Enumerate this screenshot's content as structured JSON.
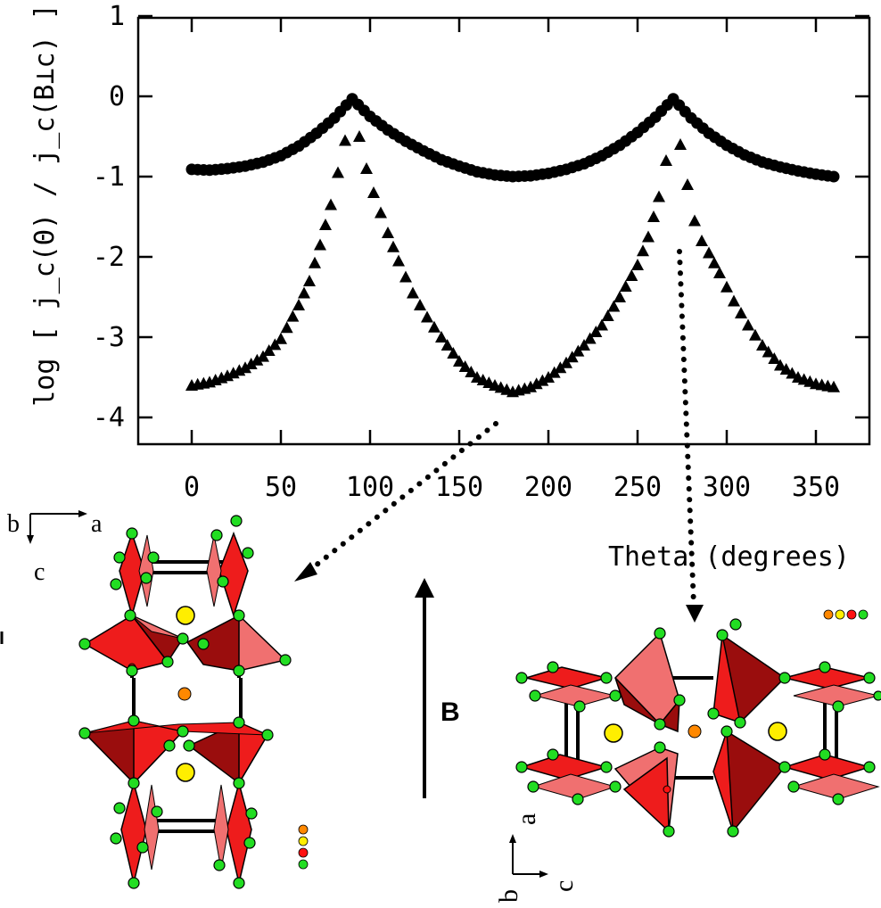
{
  "chart_data": {
    "type": "scatter",
    "ylabel": "log [ j_c(Θ) / j_c(B⊥c) ]",
    "xlabel": "Theta (degrees)",
    "xlim": [
      -30,
      375
    ],
    "ylim": [
      -4.4,
      1.0
    ],
    "x_ticks": [
      0,
      50,
      100,
      150,
      200,
      250,
      300,
      350
    ],
    "y_ticks": [
      1,
      0,
      -1,
      -2,
      -3,
      -4
    ],
    "x_tick_labels": [
      "0",
      "50",
      "100",
      "150",
      "200",
      "250",
      "300",
      "350"
    ],
    "y_tick_labels": [
      "1",
      "0",
      "-1",
      "-2",
      "-3",
      "-4"
    ],
    "grid": false,
    "series": [
      {
        "marker": "circle",
        "x": [
          0,
          10,
          20,
          30,
          40,
          50,
          60,
          70,
          80,
          90,
          100,
          110,
          120,
          130,
          140,
          150,
          160,
          170,
          180,
          190,
          200,
          210,
          220,
          230,
          240,
          250,
          260,
          270,
          280,
          290,
          300,
          310,
          320,
          330,
          340,
          350,
          360
        ],
        "values": [
          -0.91,
          -0.92,
          -0.9,
          -0.87,
          -0.82,
          -0.74,
          -0.62,
          -0.46,
          -0.27,
          -0.03,
          -0.25,
          -0.42,
          -0.56,
          -0.68,
          -0.79,
          -0.87,
          -0.94,
          -0.98,
          -1.0,
          -0.99,
          -0.96,
          -0.91,
          -0.84,
          -0.74,
          -0.61,
          -0.45,
          -0.26,
          -0.03,
          -0.27,
          -0.46,
          -0.61,
          -0.73,
          -0.82,
          -0.88,
          -0.93,
          -0.97,
          -1.0
        ]
      },
      {
        "marker": "triangle",
        "x": [
          0,
          10,
          20,
          30,
          40,
          50,
          60,
          66,
          72,
          78,
          82,
          86,
          90,
          94,
          98,
          102,
          106,
          110,
          116,
          124,
          132,
          140,
          150,
          160,
          170,
          180,
          190,
          200,
          210,
          220,
          230,
          240,
          250,
          256,
          262,
          266,
          270,
          274,
          278,
          282,
          286,
          290,
          296,
          304,
          312,
          320,
          330,
          340,
          350,
          360
        ],
        "values": [
          -3.6,
          -3.56,
          -3.48,
          -3.38,
          -3.24,
          -3.02,
          -2.6,
          -2.3,
          -1.85,
          -1.35,
          -0.95,
          -0.55,
          -0.05,
          -0.5,
          -0.9,
          -1.2,
          -1.45,
          -1.7,
          -2.05,
          -2.45,
          -2.75,
          -3.0,
          -3.3,
          -3.5,
          -3.6,
          -3.68,
          -3.62,
          -3.5,
          -3.32,
          -3.1,
          -2.85,
          -2.5,
          -2.1,
          -1.75,
          -1.25,
          -0.8,
          -0.05,
          -0.6,
          -1.1,
          -1.55,
          -1.8,
          -1.95,
          -2.2,
          -2.55,
          -2.85,
          -3.1,
          -3.35,
          -3.5,
          -3.58,
          -3.62
        ]
      }
    ]
  },
  "annotations": {
    "field_label": "B",
    "axes_left": {
      "a": "a",
      "b": "b",
      "c": "c"
    },
    "axes_right": {
      "a": "a",
      "b": "b",
      "c": "c"
    }
  },
  "colors": {
    "octahedron_light": "#f07070",
    "octahedron_mid": "#ee1c1c",
    "octahedron_dark": "#9a0d0d",
    "oxygen": "#22dd22",
    "rare_earth": "#ffee00",
    "barium": "#ff8800",
    "copper": "#ff1111"
  }
}
